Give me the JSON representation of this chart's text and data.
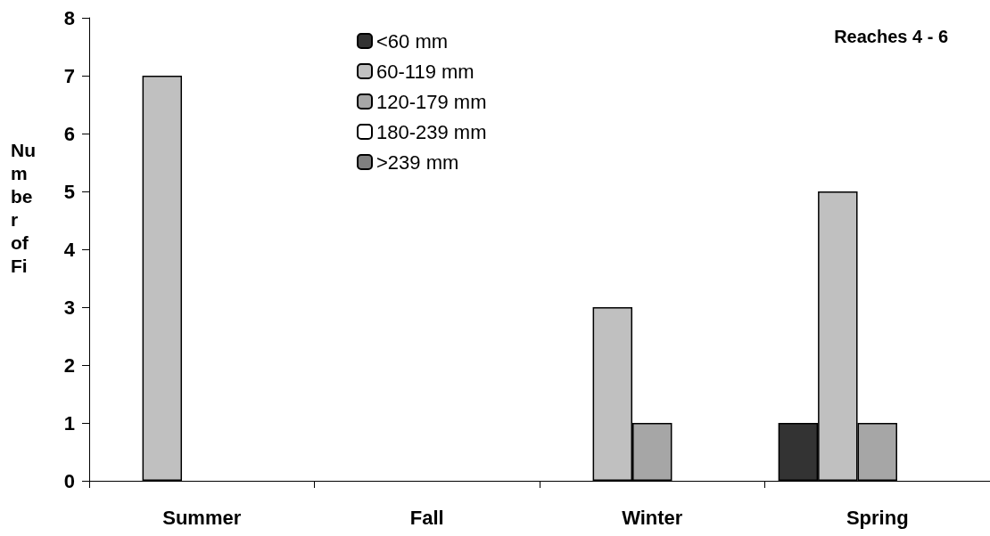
{
  "chart_data": {
    "type": "bar",
    "title": "Reaches 4 - 6",
    "ylabel": "Number of Fi",
    "categories": [
      "Summer",
      "Fall",
      "Winter",
      "Spring"
    ],
    "series": [
      {
        "name": "<60 mm",
        "color": "#333333",
        "values": [
          0,
          0,
          0,
          1
        ]
      },
      {
        "name": "60-119 mm",
        "color": "#c0c0c0",
        "values": [
          7,
          0,
          3,
          5
        ]
      },
      {
        "name": "120-179 mm",
        "color": "#a6a6a6",
        "values": [
          0,
          0,
          1,
          1
        ]
      },
      {
        "name": "180-239 mm",
        "color": "#ffffff",
        "values": [
          0,
          0,
          0,
          0
        ]
      },
      {
        "name": ">239 mm",
        "color": "#808080",
        "values": [
          0,
          0,
          0,
          0
        ]
      }
    ],
    "ylim": [
      0,
      8
    ],
    "yticks": [
      0,
      1,
      2,
      3,
      4,
      5,
      6,
      7,
      8
    ],
    "grid": false,
    "legend": "top"
  }
}
